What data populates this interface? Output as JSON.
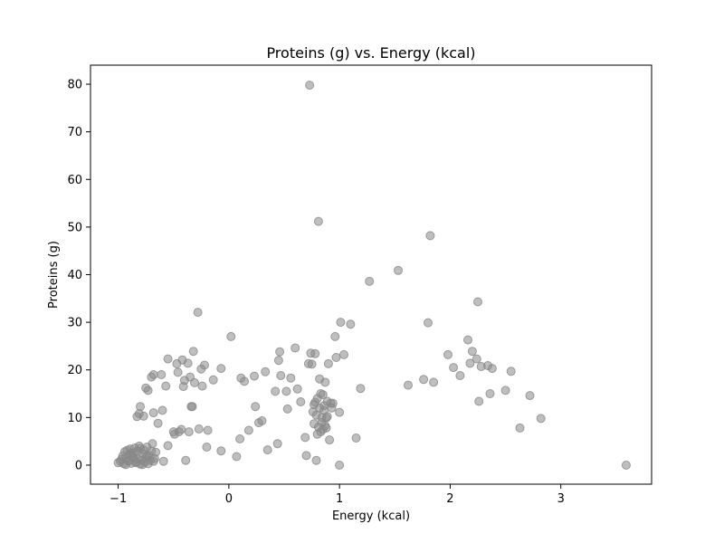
{
  "chart_data": {
    "type": "scatter",
    "title": "Proteins (g) vs. Energy (kcal)",
    "xlabel": "Energy (kcal)",
    "ylabel": "Proteins (g)",
    "xlim": [
      -1.25,
      3.82
    ],
    "ylim": [
      -4,
      84
    ],
    "xticks": [
      -1,
      0,
      1,
      2,
      3
    ],
    "yticks": [
      0,
      10,
      20,
      30,
      40,
      50,
      60,
      70,
      80
    ],
    "grid": false,
    "point_color": "#888888",
    "points": [
      [
        -1.0,
        0.5
      ],
      [
        -0.98,
        0.8
      ],
      [
        -0.97,
        1.2
      ],
      [
        -0.95,
        0.3
      ],
      [
        -0.94,
        2.8
      ],
      [
        -0.93,
        1.5
      ],
      [
        -0.92,
        3.1
      ],
      [
        -0.91,
        0.9
      ],
      [
        -0.9,
        2.2
      ],
      [
        -0.89,
        3.4
      ],
      [
        -0.88,
        0.4
      ],
      [
        -0.87,
        1.8
      ],
      [
        -0.86,
        2.6
      ],
      [
        -0.85,
        3.6
      ],
      [
        -0.84,
        0.7
      ],
      [
        -0.83,
        1.3
      ],
      [
        -0.82,
        2.9
      ],
      [
        -0.81,
        4.0
      ],
      [
        -0.8,
        0.2
      ],
      [
        -0.79,
        1.1
      ],
      [
        -0.78,
        2.4
      ],
      [
        -0.77,
        3.2
      ],
      [
        -0.76,
        0.6
      ],
      [
        -0.75,
        1.6
      ],
      [
        -0.74,
        3.8
      ],
      [
        -0.73,
        0.3
      ],
      [
        -0.72,
        2.0
      ],
      [
        -0.71,
        1.0
      ],
      [
        -0.7,
        3.0
      ],
      [
        -0.69,
        4.5
      ],
      [
        -0.68,
        0.8
      ],
      [
        -0.67,
        1.4
      ],
      [
        -0.66,
        2.7
      ],
      [
        -0.96,
        1.9
      ],
      [
        -0.93,
        0.1
      ],
      [
        -0.9,
        1.0
      ],
      [
        -0.88,
        2.5
      ],
      [
        -0.86,
        1.5
      ],
      [
        -0.84,
        0.5
      ],
      [
        -0.8,
        3.5
      ],
      [
        -0.78,
        0.1
      ],
      [
        -0.74,
        2.0
      ],
      [
        -0.83,
        10.2
      ],
      [
        -0.81,
        10.8
      ],
      [
        -0.8,
        12.3
      ],
      [
        -0.77,
        10.3
      ],
      [
        -0.75,
        16.2
      ],
      [
        -0.73,
        15.7
      ],
      [
        -0.7,
        18.5
      ],
      [
        -0.68,
        19.0
      ],
      [
        -0.68,
        11.0
      ],
      [
        -0.64,
        8.8
      ],
      [
        -0.61,
        19.0
      ],
      [
        -0.6,
        11.5
      ],
      [
        -0.59,
        0.8
      ],
      [
        -0.57,
        16.6
      ],
      [
        -0.55,
        22.3
      ],
      [
        -0.55,
        4.1
      ],
      [
        -0.5,
        7.0
      ],
      [
        -0.49,
        6.5
      ],
      [
        -0.47,
        21.3
      ],
      [
        -0.46,
        19.5
      ],
      [
        -0.45,
        7.0
      ],
      [
        -0.43,
        7.5
      ],
      [
        -0.42,
        22.1
      ],
      [
        -0.41,
        16.5
      ],
      [
        -0.4,
        17.8
      ],
      [
        -0.39,
        1.0
      ],
      [
        -0.37,
        21.4
      ],
      [
        -0.36,
        7.0
      ],
      [
        -0.35,
        18.5
      ],
      [
        -0.34,
        12.3
      ],
      [
        -0.33,
        12.3
      ],
      [
        -0.32,
        23.9
      ],
      [
        -0.31,
        17.3
      ],
      [
        -0.28,
        32.1
      ],
      [
        -0.27,
        7.6
      ],
      [
        -0.25,
        20.2
      ],
      [
        -0.24,
        16.6
      ],
      [
        -0.22,
        21.0
      ],
      [
        -0.2,
        3.8
      ],
      [
        -0.19,
        7.3
      ],
      [
        -0.14,
        17.9
      ],
      [
        -0.07,
        20.3
      ],
      [
        -0.07,
        3.0
      ],
      [
        0.02,
        27.0
      ],
      [
        0.07,
        1.8
      ],
      [
        0.1,
        5.5
      ],
      [
        0.11,
        18.3
      ],
      [
        0.14,
        17.6
      ],
      [
        0.18,
        7.3
      ],
      [
        0.23,
        18.7
      ],
      [
        0.24,
        12.3
      ],
      [
        0.27,
        8.9
      ],
      [
        0.3,
        9.3
      ],
      [
        0.33,
        19.6
      ],
      [
        0.35,
        3.2
      ],
      [
        0.42,
        15.5
      ],
      [
        0.44,
        4.5
      ],
      [
        0.45,
        22.0
      ],
      [
        0.46,
        23.8
      ],
      [
        0.47,
        18.8
      ],
      [
        0.52,
        15.5
      ],
      [
        0.53,
        11.8
      ],
      [
        0.56,
        18.3
      ],
      [
        0.6,
        24.6
      ],
      [
        0.62,
        16.0
      ],
      [
        0.65,
        13.3
      ],
      [
        0.69,
        5.8
      ],
      [
        0.7,
        2.0
      ],
      [
        0.72,
        21.3
      ],
      [
        0.73,
        79.8
      ],
      [
        0.74,
        23.5
      ],
      [
        0.75,
        21.2
      ],
      [
        0.76,
        11.2
      ],
      [
        0.77,
        12.7
      ],
      [
        0.77,
        8.7
      ],
      [
        0.78,
        13.2
      ],
      [
        0.78,
        23.4
      ],
      [
        0.79,
        1.0
      ],
      [
        0.79,
        10.5
      ],
      [
        0.8,
        14.0
      ],
      [
        0.8,
        6.5
      ],
      [
        0.81,
        8.0
      ],
      [
        0.81,
        51.2
      ],
      [
        0.82,
        12.0
      ],
      [
        0.82,
        18.1
      ],
      [
        0.83,
        7.0
      ],
      [
        0.83,
        15.0
      ],
      [
        0.84,
        10.0
      ],
      [
        0.84,
        9.0
      ],
      [
        0.85,
        14.8
      ],
      [
        0.85,
        7.5
      ],
      [
        0.86,
        12.5
      ],
      [
        0.86,
        11.5
      ],
      [
        0.87,
        17.4
      ],
      [
        0.87,
        8.3
      ],
      [
        0.88,
        9.9
      ],
      [
        0.88,
        7.8
      ],
      [
        0.89,
        10.2
      ],
      [
        0.89,
        13.4
      ],
      [
        0.9,
        21.3
      ],
      [
        0.91,
        5.3
      ],
      [
        0.92,
        13.0
      ],
      [
        0.93,
        12.0
      ],
      [
        0.94,
        13.0
      ],
      [
        0.96,
        27.0
      ],
      [
        0.97,
        22.6
      ],
      [
        1.0,
        11.1
      ],
      [
        1.0,
        0.0
      ],
      [
        1.01,
        30.0
      ],
      [
        1.04,
        23.2
      ],
      [
        1.1,
        29.6
      ],
      [
        1.15,
        5.7
      ],
      [
        1.19,
        16.1
      ],
      [
        1.27,
        38.6
      ],
      [
        1.53,
        40.9
      ],
      [
        1.62,
        16.8
      ],
      [
        1.76,
        18.0
      ],
      [
        1.8,
        29.9
      ],
      [
        1.82,
        48.2
      ],
      [
        1.85,
        17.4
      ],
      [
        1.98,
        23.2
      ],
      [
        2.03,
        20.5
      ],
      [
        2.09,
        18.8
      ],
      [
        2.16,
        26.3
      ],
      [
        2.18,
        21.4
      ],
      [
        2.2,
        23.9
      ],
      [
        2.24,
        22.3
      ],
      [
        2.25,
        34.3
      ],
      [
        2.26,
        13.4
      ],
      [
        2.28,
        20.7
      ],
      [
        2.34,
        20.9
      ],
      [
        2.36,
        15.0
      ],
      [
        2.38,
        20.3
      ],
      [
        2.5,
        15.7
      ],
      [
        2.55,
        19.7
      ],
      [
        2.63,
        7.8
      ],
      [
        2.72,
        14.6
      ],
      [
        2.82,
        9.8
      ],
      [
        3.59,
        0.0
      ]
    ]
  }
}
